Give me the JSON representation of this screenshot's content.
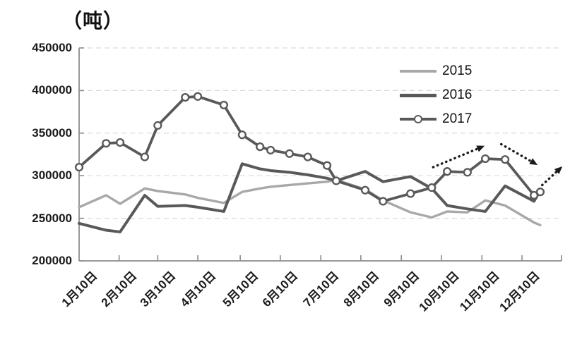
{
  "colors": {
    "series_2015": "#a8a8a8",
    "series_2016": "#595959",
    "series_2017": "#595959",
    "marker_fill": "#ffffff",
    "grid": "#d9d9d9",
    "axis": "#8c8c8c",
    "arrow": "#1a1a1a",
    "text": "#1a1a1a"
  },
  "chart_data": {
    "type": "line",
    "title": "（吨）",
    "ylabel": "吨",
    "ylim": [
      200000,
      450000
    ],
    "y_ticks": [
      200000,
      250000,
      300000,
      350000,
      400000,
      450000
    ],
    "grid": "horizontal-dashed",
    "legend_position": "top-right",
    "x_tick_labels": [
      "1月10日",
      "2月10日",
      "3月10日",
      "4月10日",
      "5月10日",
      "6月10日",
      "7月10日",
      "8月10日",
      "9月10日",
      "10月10日",
      "11月10日",
      "12月10日"
    ],
    "x_tick_fracs": [
      0,
      8.3,
      16.3,
      24.6,
      33.4,
      41.7,
      50.1,
      58.4,
      66.8,
      75.1,
      83.5,
      91.8
    ],
    "x_dates": [
      "1/10",
      "1/25",
      "2/10",
      "2/25",
      "3/10",
      "3/25",
      "4/10",
      "4/25",
      "5/10",
      "5/25",
      "6/10",
      "6/25",
      "7/10",
      "7/20",
      "7/30",
      "8/10",
      "8/25",
      "9/10",
      "9/25",
      "10/10",
      "10/25",
      "11/10",
      "11/25",
      "12/10",
      "12/25"
    ],
    "x_frac": [
      0,
      5.6,
      8.5,
      13.6,
      16.3,
      22.0,
      24.6,
      30.0,
      33.8,
      37.5,
      39.7,
      43.6,
      47.4,
      51.4,
      53.3,
      59.3,
      63.0,
      68.7,
      73.1,
      76.3,
      80.5,
      84.2,
      88.3,
      94.3,
      95.6
    ],
    "series": [
      {
        "name": "2015",
        "color": "#a8a8a8",
        "marker": false,
        "values": [
          263000,
          277000,
          267000,
          285000,
          282000,
          278000,
          274000,
          268000,
          281000,
          285000,
          287000,
          289000,
          291000,
          293000,
          295000,
          284000,
          271000,
          257000,
          251000,
          258000,
          257000,
          271000,
          265000,
          245000,
          242000
        ]
      },
      {
        "name": "2016",
        "color": "#595959",
        "marker": false,
        "values": [
          244000,
          236000,
          234000,
          277000,
          264000,
          265000,
          263000,
          258000,
          314000,
          308000,
          306000,
          304000,
          301000,
          297000,
          294000,
          305000,
          293000,
          299000,
          285000,
          265000,
          261000,
          258000,
          288000,
          270000,
          283000
        ]
      },
      {
        "name": "2017",
        "color": "#595959",
        "marker": true,
        "values": [
          310000,
          338000,
          339000,
          322000,
          359000,
          392000,
          393000,
          383000,
          348000,
          334000,
          330000,
          326000,
          322000,
          312000,
          294000,
          283000,
          270000,
          279000,
          286000,
          305000,
          304000,
          320000,
          319000,
          277000,
          281000
        ]
      }
    ],
    "annotations": [
      {
        "name": "uptrend-arrow-october",
        "from": [
          73.4,
          310000
        ],
        "to": [
          83.6,
          334000
        ]
      },
      {
        "name": "downtrend-arrow-december",
        "from": [
          87.5,
          337000
        ],
        "to": [
          94.6,
          314000
        ]
      },
      {
        "name": "uptrend-arrow-yearend",
        "from": [
          96.0,
          289000
        ],
        "to": [
          99.8,
          309000
        ]
      }
    ]
  }
}
